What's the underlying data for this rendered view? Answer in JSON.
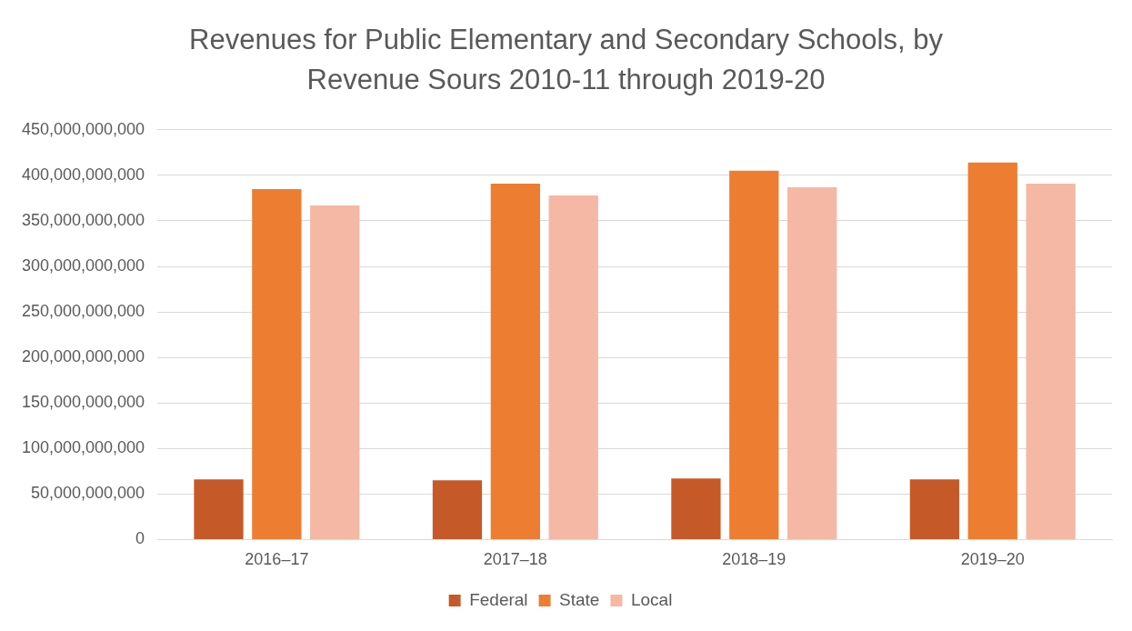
{
  "chart_data": {
    "type": "bar",
    "title": "Revenues for Public Elementary and Secondary Schools, by Revenue Sours 2010-11 through 2019-20",
    "categories": [
      "2016–17",
      "2017–18",
      "2018–19",
      "2019–20"
    ],
    "series": [
      {
        "name": "Federal",
        "color": "#c55a28",
        "values": [
          66000000000,
          65000000000,
          67000000000,
          66000000000
        ]
      },
      {
        "name": "State",
        "color": "#ed7d31",
        "values": [
          385000000000,
          391000000000,
          405000000000,
          414000000000
        ]
      },
      {
        "name": "Local",
        "color": "#f4b8a4",
        "values": [
          367000000000,
          378000000000,
          387000000000,
          391000000000
        ]
      }
    ],
    "ylim": [
      0,
      450000000000
    ],
    "yticks": [
      0,
      {
        "value": 50000000000,
        "label": "50,000,000,000"
      },
      {
        "value": 100000000000,
        "label": "100,000,000,000"
      },
      {
        "value": 150000000000,
        "label": "150,000,000,000"
      },
      {
        "value": 200000000000,
        "label": "200,000,000,000"
      },
      {
        "value": 250000000000,
        "label": "250,000,000,000"
      },
      {
        "value": 300000000000,
        "label": "300,000,000,000"
      },
      {
        "value": 350000000000,
        "label": "350,000,000,000"
      },
      {
        "value": 400000000000,
        "label": "400,000,000,000"
      },
      {
        "value": 450000000000,
        "label": "450,000,000,000"
      }
    ],
    "grid": "y",
    "legend": "bottom"
  }
}
